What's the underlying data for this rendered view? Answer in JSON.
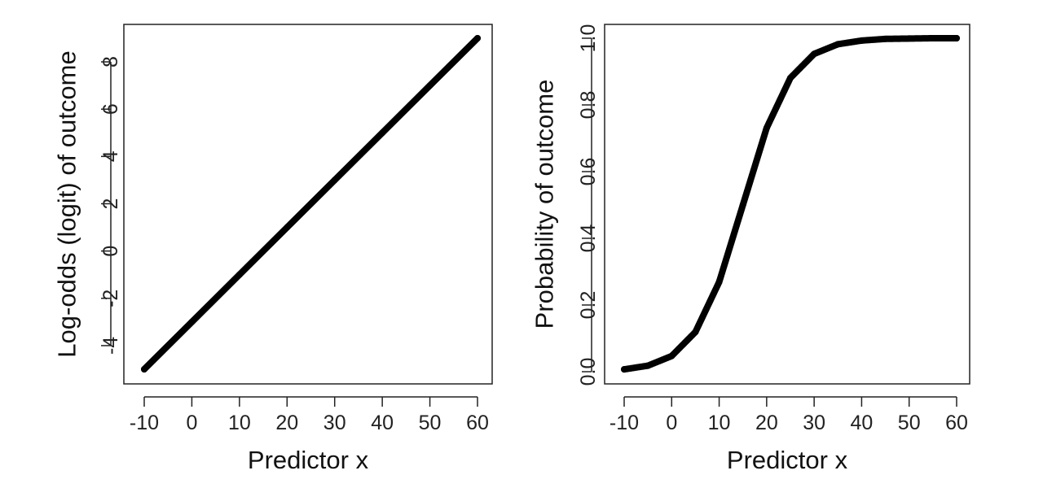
{
  "chart_data": [
    {
      "type": "line",
      "title": "",
      "xlabel": "Predictor x",
      "ylabel": "Log-odds (logit) of outcome",
      "xlim": [
        -10,
        60
      ],
      "ylim": [
        -5,
        9
      ],
      "x_ticks": [
        -10,
        0,
        10,
        20,
        30,
        40,
        50,
        60
      ],
      "x_tick_labels": [
        "-10",
        "0",
        "10",
        "20",
        "30",
        "40",
        "50",
        "60"
      ],
      "y_ticks": [
        -4,
        -2,
        0,
        2,
        4,
        6,
        8
      ],
      "y_tick_labels": [
        "-4",
        "-2",
        "0",
        "2",
        "4",
        "6",
        "8"
      ],
      "grid": false,
      "series": [
        {
          "x": [
            -10,
            0,
            10,
            20,
            30,
            40,
            50,
            60
          ],
          "y": [
            -5,
            -3,
            -1,
            1,
            3,
            5,
            7,
            9
          ]
        }
      ]
    },
    {
      "type": "line",
      "title": "",
      "xlabel": "Predictor x",
      "ylabel": "Probability of outcome",
      "xlim": [
        -10,
        60
      ],
      "ylim": [
        0,
        1
      ],
      "x_ticks": [
        -10,
        0,
        10,
        20,
        30,
        40,
        50,
        60
      ],
      "x_tick_labels": [
        "-10",
        "0",
        "10",
        "20",
        "30",
        "40",
        "50",
        "60"
      ],
      "y_ticks": [
        0,
        0.2,
        0.4,
        0.6,
        0.8,
        1
      ],
      "y_tick_labels": [
        "0.0",
        "0.2",
        "0.4",
        "0.6",
        "0.8",
        "1.0"
      ],
      "grid": false,
      "series": [
        {
          "x": [
            -10,
            -5,
            0,
            5,
            10,
            15,
            20,
            25,
            30,
            35,
            40,
            45,
            50,
            55,
            60
          ],
          "y": [
            0.007,
            0.018,
            0.047,
            0.119,
            0.269,
            0.5,
            0.731,
            0.881,
            0.953,
            0.982,
            0.993,
            0.998,
            0.999,
            1,
            1
          ]
        }
      ]
    }
  ]
}
